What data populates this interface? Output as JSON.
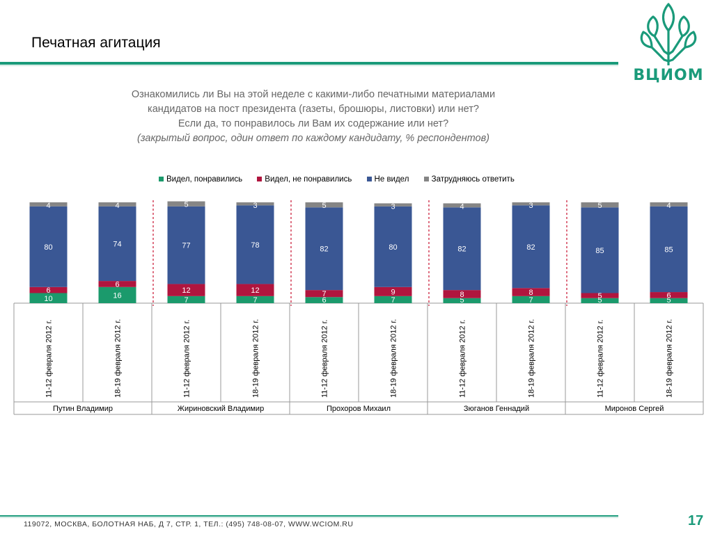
{
  "slide": {
    "title": "Печатная агитация",
    "logo_text": "ВЦИОМ",
    "question_line1": "Ознакомились ли Вы на этой неделе с какими-либо печатными материалами",
    "question_line2": "кандидатов на пост президента (газеты, брошюры, листовки) или нет?",
    "question_line3": "Если да, то понравилось ли Вам их содержание или нет?",
    "question_note": "(закрытый вопрос, один ответ по каждому кандидату, % респондентов)",
    "footer": "119072, МОСКВА, БОЛОТНАЯ НАБ, Д 7, СТР. 1, ТЕЛ.: (495) 748-08-07, WWW.WCIOM.RU",
    "page_number": "17"
  },
  "colors": {
    "accent": "#1a9a7a",
    "liked": "#1b9a6c",
    "disliked": "#b0153e",
    "not_seen": "#3a5794",
    "dont_know": "#858585"
  },
  "chart_data": {
    "type": "bar",
    "stacked": true,
    "legend_position": "top",
    "categories": [
      "11-12 февраля 2012 г.",
      "18-19 февраля 2012 г.",
      "11-12 февраля 2012 г.",
      "18-19 февраля 2012 г.",
      "11-12 февраля 2012 г.",
      "18-19 февраля 2012 г.",
      "11-12 февраля 2012 г.",
      "18-19 февраля 2012 г.",
      "11-12 февраля 2012 г.",
      "18-19 февраля 2012 г."
    ],
    "groups": [
      "Путин Владимир",
      "Жириновский Владимир",
      "Прохоров Михаил",
      "Зюганов Геннадий",
      "Миронов Сергей"
    ],
    "series": [
      {
        "name": "Видел, понравились",
        "values": [
          10,
          16,
          7,
          7,
          6,
          7,
          5,
          7,
          5,
          5
        ]
      },
      {
        "name": "Видел, не понравились",
        "values": [
          6,
          6,
          12,
          12,
          7,
          9,
          8,
          8,
          5,
          6
        ]
      },
      {
        "name": "Не видел",
        "values": [
          80,
          74,
          77,
          78,
          82,
          80,
          82,
          82,
          85,
          85
        ]
      },
      {
        "name": "Затрудняюсь ответить",
        "values": [
          4,
          4,
          5,
          3,
          5,
          3,
          4,
          3,
          5,
          4
        ]
      }
    ],
    "ylim": [
      0,
      100
    ]
  }
}
